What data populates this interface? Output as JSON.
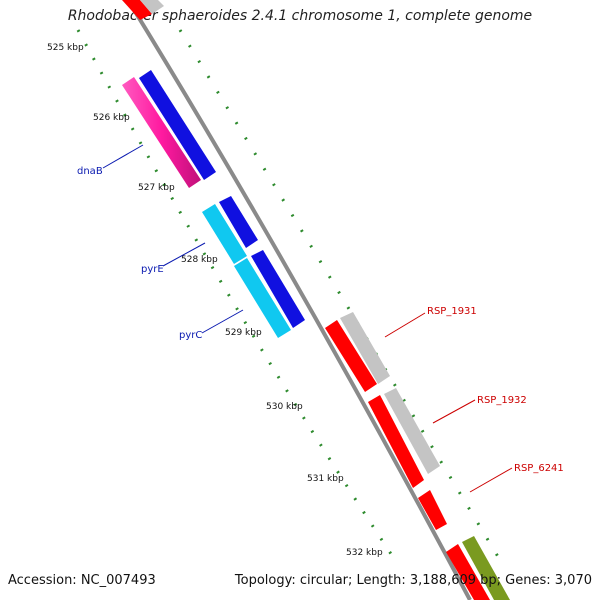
{
  "title": "Rhodobacter sphaeroides 2.4.1 chromosome 1, complete genome",
  "footer": {
    "accession": "Accession: NC_007493",
    "topology": "Topology: circular; Length: 3,188,609 bp; Genes: 3,070"
  },
  "kbp_labels": [
    "525 kbp",
    "526 kbp",
    "527 kbp",
    "528 kbp",
    "529 kbp",
    "530 kbp",
    "531 kbp",
    "532 kbp"
  ],
  "gene_labels": [
    {
      "name": "dnaB",
      "color": "#0a1ab0"
    },
    {
      "name": "pyrE",
      "color": "#0a1ab0"
    },
    {
      "name": "pyrC",
      "color": "#0a1ab0"
    },
    {
      "name": "RSP_1931",
      "color": "#cc0000"
    },
    {
      "name": "RSP_1932",
      "color": "#cc0000"
    },
    {
      "name": "RSP_6241",
      "color": "#cc0000"
    }
  ],
  "colors": {
    "backbone": "#8a8a8a",
    "tick_dots": "#2e8b2e",
    "gene_pink": "#ff1aa0",
    "gene_blue": "#1010e0",
    "gene_cyan": "#10c8f0",
    "gene_red": "#ff0000",
    "gene_grey": "#c4c4c4",
    "gene_olive": "#7a9a20"
  }
}
